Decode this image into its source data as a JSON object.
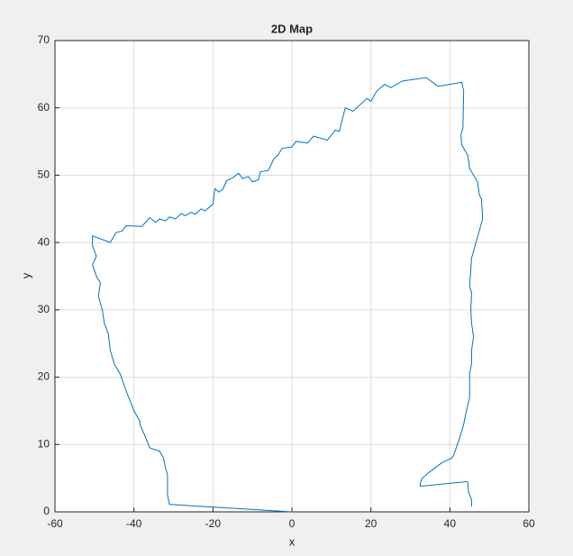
{
  "chart_data": {
    "type": "line",
    "title": "2D Map",
    "xlabel": "x",
    "ylabel": "y",
    "x": [
      0,
      -31,
      -31.5,
      -31.5,
      -32,
      -32.5,
      -33.5,
      -36,
      -37,
      -38.5,
      -38.5,
      -40,
      -42,
      -43.5,
      -45,
      -46,
      -46.5,
      -47.5,
      -48,
      -49,
      -48.5,
      -49.5,
      -50.5,
      -49.5,
      -50.5,
      -50.5,
      -46,
      -44.5,
      -43,
      -42,
      -38,
      -36,
      -34.5,
      -33.5,
      -32,
      -31,
      -29.5,
      -28,
      -27,
      -25.5,
      -24.5,
      -23,
      -22,
      -20,
      -19.5,
      -18.5,
      -17.5,
      -16.5,
      -15,
      -13.5,
      -12.5,
      -11,
      -10,
      -8.5,
      -8,
      -6,
      -4.5,
      -3.5,
      -2.5,
      -1,
      0,
      1,
      4,
      5.5,
      9,
      11,
      12,
      13.5,
      15.5,
      19,
      20,
      21.5,
      23.5,
      25,
      28,
      34,
      37,
      43,
      43.5,
      43.3,
      42.8,
      43,
      44.5,
      45,
      47,
      47.5,
      48,
      48.3,
      45.5,
      45,
      45.5,
      45.3,
      45.5,
      46,
      45.5,
      45.5,
      45,
      45,
      44,
      43.5,
      42.5,
      41,
      40.5,
      38,
      35,
      33,
      32.5,
      32.5,
      44.5,
      44.7,
      45,
      45.5,
      45.5
    ],
    "values": [
      0,
      1.1,
      2.5,
      5.5,
      6.5,
      8,
      9,
      9.5,
      11,
      13,
      13.5,
      15,
      18,
      20.5,
      22,
      24,
      26.5,
      28,
      30,
      32,
      34,
      35,
      36.7,
      38,
      39.5,
      41,
      40,
      41.5,
      41.7,
      42.5,
      42.4,
      43.7,
      43,
      43.5,
      43.2,
      43.8,
      43.5,
      44.3,
      44,
      44.5,
      44.2,
      45,
      44.7,
      45.7,
      48,
      47.5,
      47.9,
      49.2,
      49.6,
      50.3,
      49.5,
      49.8,
      49,
      49.3,
      50.5,
      50.7,
      52.5,
      53,
      54,
      54.1,
      54.2,
      55,
      54.8,
      55.8,
      55.2,
      56.7,
      56.5,
      60,
      59.5,
      61.4,
      61,
      62.5,
      63.5,
      63,
      64,
      64.5,
      63.2,
      63.8,
      62.5,
      57,
      56,
      54.5,
      53,
      51,
      49,
      47,
      46.5,
      43.5,
      37.7,
      33.5,
      32.5,
      30,
      28,
      26,
      24,
      22,
      20.5,
      17,
      14.5,
      13,
      11,
      8.5,
      8,
      7.3,
      6,
      5,
      4.2,
      3.8,
      4.5,
      3,
      2.5,
      1.8,
      0.8
    ],
    "color": "#0072bd",
    "xlim": [
      -60,
      60
    ],
    "xticks": [
      -60,
      -40,
      -20,
      0,
      20,
      40,
      60
    ],
    "ylim": [
      0,
      70
    ],
    "yticks": [
      0,
      10,
      20,
      30,
      40,
      50,
      60,
      70
    ],
    "grid": true
  }
}
